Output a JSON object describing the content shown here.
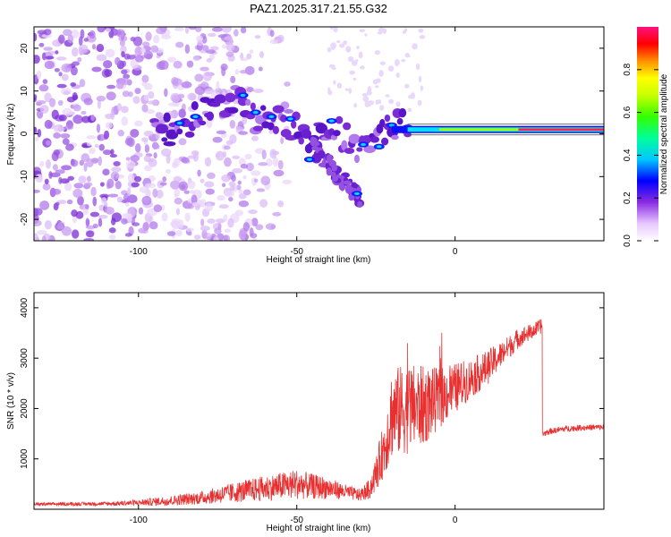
{
  "chart_data": [
    {
      "type": "heatmap",
      "title": "PAZ1.2025.317.21.55.G32",
      "xlabel": "Height of straight line (km)",
      "ylabel": "Frequency (Hz)",
      "xlim": [
        -133,
        47
      ],
      "ylim": [
        -25,
        25
      ],
      "xticks": [
        -100,
        -50,
        0
      ],
      "yticks": [
        -20,
        -10,
        0,
        10,
        20
      ],
      "colorbar": {
        "label": "Normalized spectral amplitude",
        "range": [
          0,
          1
        ],
        "ticks": [
          "0.0",
          "0.2",
          "0.4",
          "0.6",
          "0.8"
        ]
      },
      "ridge": {
        "x": [
          -90,
          -85,
          -80,
          -70,
          -65,
          -60,
          -55,
          -50,
          -45,
          -40,
          -35,
          -30,
          -25,
          -20,
          -15,
          -10,
          -5,
          0,
          5,
          10,
          15,
          20,
          30,
          40,
          47
        ],
        "y": [
          3,
          3,
          4,
          9,
          5,
          3,
          3,
          1,
          -4,
          3,
          -1,
          -3,
          -3,
          2,
          1.5,
          1,
          1,
          1,
          0,
          1.5,
          1.5,
          1,
          1,
          1,
          1
        ]
      },
      "noise_region": {
        "x": [
          -133,
          -75
        ],
        "y": [
          -25,
          25
        ]
      },
      "tail_feature": {
        "x": [
          -45,
          -30
        ],
        "y": [
          -15,
          -3
        ]
      },
      "steady_carrier": {
        "x": [
          -15,
          47
        ],
        "y": 1
      }
    },
    {
      "type": "line",
      "title": "",
      "xlabel": "Height of straight line (km)",
      "ylabel": "SNR (10 * v/v)",
      "xlim": [
        -133,
        47
      ],
      "ylim": [
        0,
        4300
      ],
      "xticks": [
        -100,
        -50,
        0
      ],
      "yticks": [
        1000,
        2000,
        3000,
        4000
      ],
      "series": [
        {
          "name": "SNR",
          "color": "#e83030",
          "x": [
            -133,
            -110,
            -100,
            -90,
            -80,
            -70,
            -60,
            -50,
            -45,
            -40,
            -35,
            -30,
            -27,
            -25,
            -22,
            -20,
            -15,
            -10,
            -5,
            0,
            5,
            10,
            15,
            20,
            25,
            27.5,
            28,
            30,
            35,
            40,
            47
          ],
          "y": [
            100,
            110,
            130,
            170,
            230,
            330,
            420,
            500,
            450,
            420,
            350,
            280,
            400,
            700,
            1300,
            1900,
            2000,
            2050,
            2200,
            2400,
            2600,
            2800,
            3100,
            3400,
            3550,
            3650,
            1500,
            1550,
            1600,
            1620,
            1630
          ],
          "noise_amplitude": [
            30,
            40,
            60,
            100,
            130,
            200,
            250,
            300,
            250,
            220,
            150,
            120,
            200,
            350,
            600,
            900,
            900,
            800,
            600,
            500,
            400,
            350,
            250,
            200,
            150,
            150,
            60,
            60,
            60,
            60,
            60
          ]
        }
      ]
    }
  ]
}
